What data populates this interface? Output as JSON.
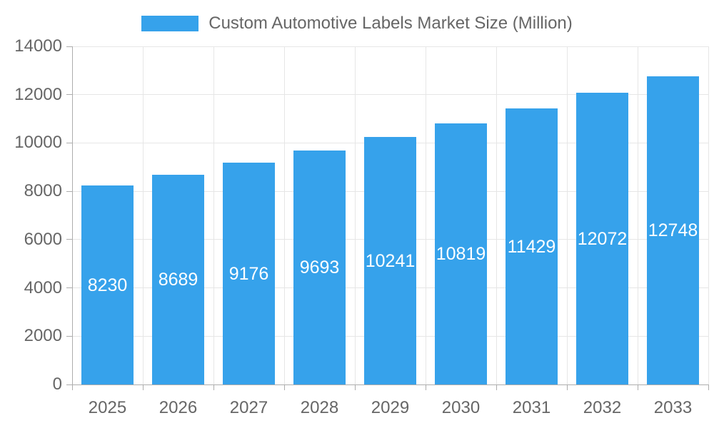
{
  "chart_data": {
    "type": "bar",
    "title": "Custom Automotive Labels Market Size (Million)",
    "series": [
      {
        "name": "Custom Automotive Labels Market Size (Million)",
        "values": [
          8230,
          8689,
          9176,
          9693,
          10241,
          10819,
          11429,
          12072,
          12748
        ]
      }
    ],
    "categories": [
      "2025",
      "2026",
      "2027",
      "2028",
      "2029",
      "2030",
      "2031",
      "2032",
      "2033"
    ],
    "value_labels": [
      "8230",
      "8689",
      "9176",
      "9693",
      "10241",
      "10819",
      "11429",
      "12072",
      "12748"
    ],
    "xlabel": "",
    "ylabel": "",
    "ylim": [
      0,
      14000
    ],
    "yticks": [
      0,
      2000,
      4000,
      6000,
      8000,
      10000,
      12000,
      14000
    ],
    "grid": "on",
    "legend_position": "top-center",
    "colors": {
      "bar": "#36A2EB",
      "value_label": "#ffffff",
      "tick_text": "#666666",
      "gridline": "#e6e6e6",
      "axis_border": "#adadad",
      "background": "#ffffff"
    }
  }
}
